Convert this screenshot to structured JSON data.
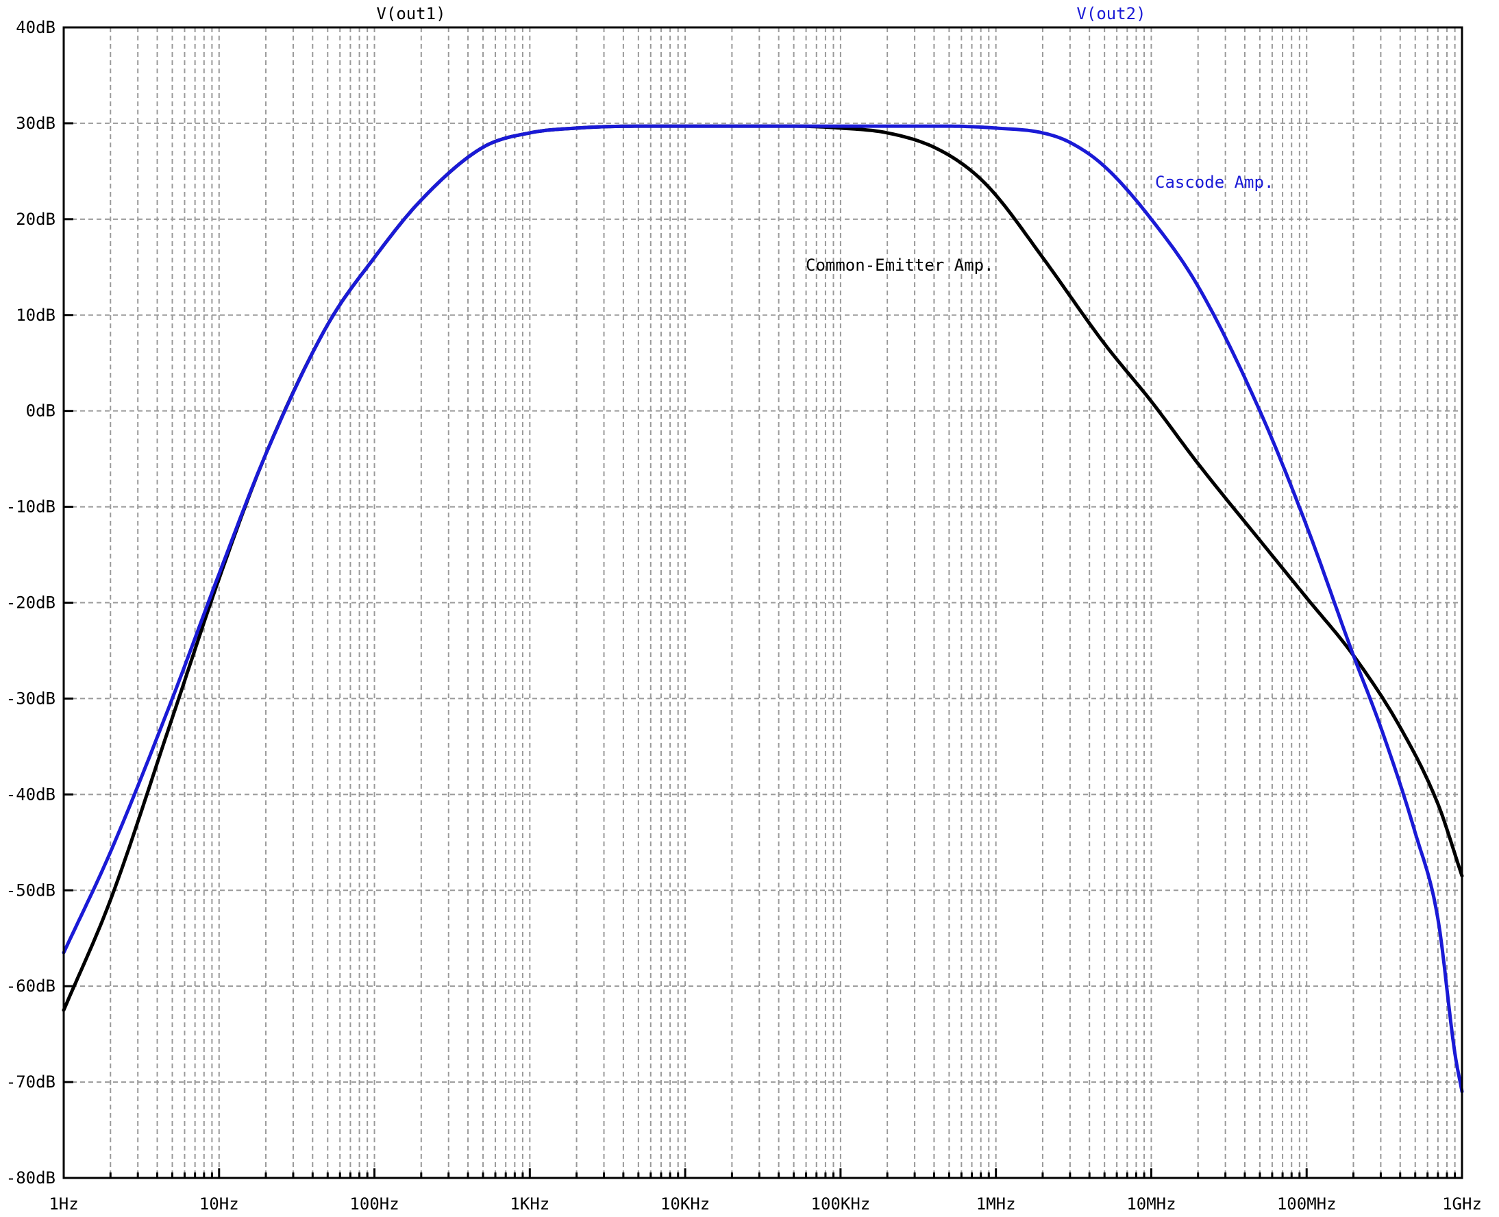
{
  "chart_data": {
    "type": "line",
    "xscale": "log",
    "xlim_hz": [
      1,
      1000000000
    ],
    "ylim": [
      -80,
      40
    ],
    "y_step": 10,
    "grid": true,
    "x_tick_labels": [
      "1Hz",
      "10Hz",
      "100Hz",
      "1KHz",
      "10KHz",
      "100KHz",
      "1MHz",
      "10MHz",
      "100MHz",
      "1GHz"
    ],
    "y_tick_labels": [
      "40dB",
      "30dB",
      "20dB",
      "10dB",
      "0dB",
      "-10dB",
      "-20dB",
      "-30dB",
      "-40dB",
      "-50dB",
      "-60dB",
      "-70dB",
      "-80dB"
    ],
    "trace_titles": [
      "V(out1)",
      "V(out2)"
    ],
    "annotations": {
      "common_emitter": "Common-Emitter Amp.",
      "cascode": "Cascode Amp."
    },
    "colors": {
      "out1": "#000000",
      "out2": "#1a1ad6",
      "grid": "#9a9a9a"
    },
    "series": [
      {
        "name": "V(out1)",
        "color": "#000000",
        "x": [
          1,
          2,
          5,
          10,
          20,
          50,
          100,
          200,
          500,
          1000,
          2000,
          5000,
          10000,
          50000,
          100000,
          200000,
          400000,
          700000,
          1000000,
          2000000,
          5000000,
          10000000,
          20000000,
          50000000,
          100000000,
          200000000,
          400000000,
          700000000,
          1000000000
        ],
        "y": [
          -62.5,
          -51,
          -32,
          -17.5,
          -4.5,
          9,
          16,
          22,
          27.5,
          29,
          29.5,
          29.7,
          29.7,
          29.7,
          29.5,
          29,
          27.5,
          25,
          22.5,
          16,
          7,
          1,
          -5.5,
          -13.5,
          -19.5,
          -25.5,
          -33,
          -41,
          -48.5
        ]
      },
      {
        "name": "V(out2)",
        "color": "#1a1ad6",
        "x": [
          1,
          2,
          5,
          10,
          20,
          50,
          100,
          200,
          500,
          1000,
          2000,
          5000,
          10000,
          50000,
          100000,
          500000,
          1000000,
          2000000,
          3000000,
          5000000,
          10000000,
          20000000,
          50000000,
          100000000,
          200000000,
          300000000,
          500000000,
          700000000,
          900000000,
          1000000000
        ],
        "y": [
          -56.5,
          -46,
          -30,
          -17,
          -4.5,
          9,
          16,
          22,
          27.5,
          29,
          29.5,
          29.7,
          29.7,
          29.7,
          29.7,
          29.7,
          29.5,
          29,
          28,
          25.5,
          20,
          13,
          0,
          -12,
          -25.5,
          -33,
          -44,
          -53,
          -67,
          -71
        ]
      }
    ]
  }
}
